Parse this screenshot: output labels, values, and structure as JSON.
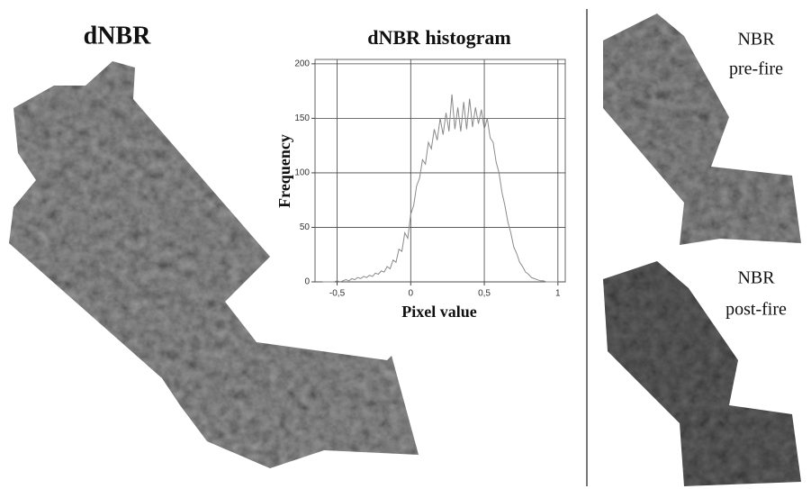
{
  "maps": [
    {
      "title": "dNBR"
    },
    {
      "title": "NBR",
      "subtitle": "pre-fire"
    },
    {
      "title": "NBR",
      "subtitle": "post-fire"
    }
  ],
  "chart_data": {
    "type": "line",
    "title": "dNBR histogram",
    "x_label": "Pixel value",
    "y_label": "Frequency",
    "x": [
      -0.6,
      -0.58,
      -0.56,
      -0.54,
      -0.52,
      -0.5,
      -0.48,
      -0.46,
      -0.44,
      -0.42,
      -0.4,
      -0.38,
      -0.36,
      -0.34,
      -0.32,
      -0.3,
      -0.28,
      -0.26,
      -0.24,
      -0.22,
      -0.2,
      -0.18,
      -0.16,
      -0.14,
      -0.12,
      -0.1,
      -0.08,
      -0.06,
      -0.04,
      -0.02,
      0,
      0.02,
      0.04,
      0.06,
      0.08,
      0.1,
      0.12,
      0.14,
      0.16,
      0.18,
      0.2,
      0.22,
      0.24,
      0.26,
      0.28,
      0.3,
      0.32,
      0.34,
      0.36,
      0.38,
      0.4,
      0.42,
      0.44,
      0.46,
      0.48,
      0.5,
      0.52,
      0.54,
      0.56,
      0.58,
      0.6,
      0.62,
      0.64,
      0.66,
      0.68,
      0.7,
      0.72,
      0.74,
      0.76,
      0.78,
      0.8,
      0.82,
      0.84,
      0.86,
      0.88,
      0.9,
      0.92,
      0.94,
      0.96,
      0.98,
      1.0
    ],
    "values": [
      0,
      0,
      0,
      0,
      0,
      1,
      0,
      1,
      2,
      1,
      3,
      2,
      4,
      3,
      5,
      4,
      6,
      5,
      8,
      7,
      10,
      9,
      14,
      12,
      20,
      18,
      30,
      28,
      45,
      40,
      62,
      70,
      88,
      95,
      112,
      108,
      128,
      122,
      140,
      130,
      150,
      135,
      155,
      138,
      172,
      140,
      160,
      138,
      165,
      140,
      168,
      142,
      160,
      145,
      158,
      140,
      150,
      132,
      128,
      110,
      100,
      82,
      70,
      55,
      45,
      32,
      26,
      18,
      14,
      9,
      7,
      4,
      3,
      2,
      1,
      1,
      0,
      0,
      0,
      0,
      0
    ],
    "color": "#8a8a8a",
    "xlim": [
      -0.65,
      1.05
    ],
    "xticks": [
      {
        "value": -0.5,
        "label": "-0,5"
      },
      0,
      {
        "value": 0.5,
        "label": "0,5"
      },
      1
    ],
    "ylim": [
      0,
      204
    ],
    "yticks": [
      0,
      50,
      100,
      150,
      200
    ],
    "grid": true
  }
}
